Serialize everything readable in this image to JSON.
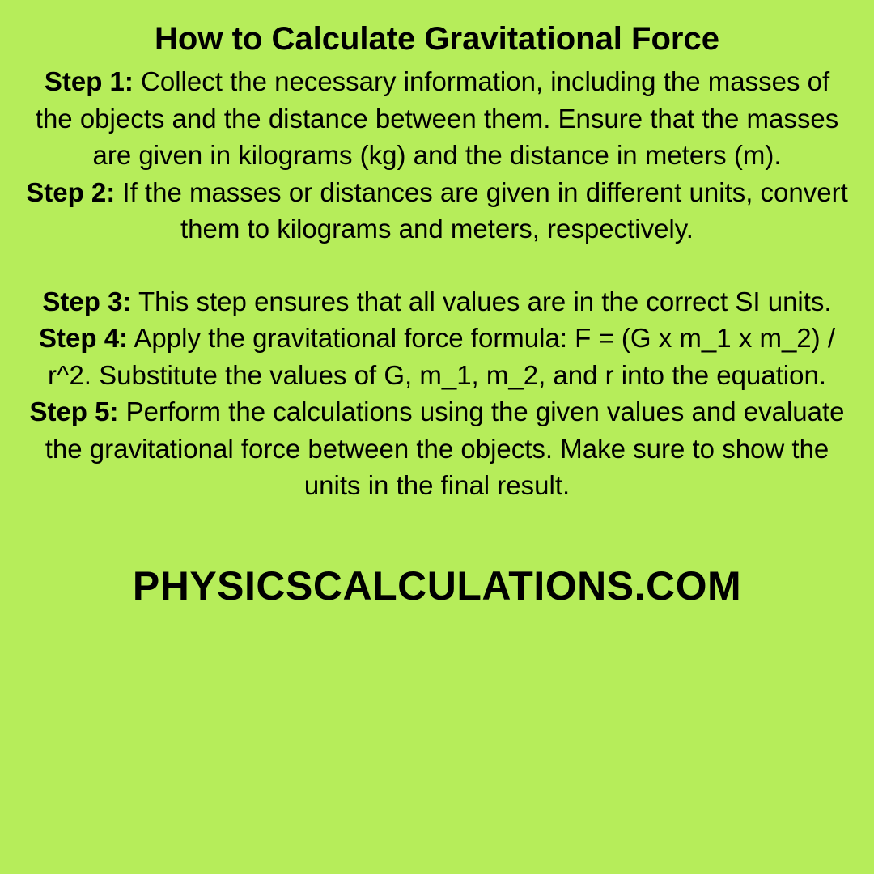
{
  "background_color": "#b6ed5a",
  "text_color": "#000000",
  "title": {
    "text": "How to Calculate Gravitational Force",
    "fontsize": 40,
    "fontweight": 700
  },
  "body_fontsize": 33,
  "steps": [
    {
      "label": "Step 1:",
      "text": " Collect the necessary information, including the masses of the objects and the distance between them. Ensure that the masses are given in kilograms (kg) and the distance in meters (m)."
    },
    {
      "label": "Step 2:",
      "text": " If the masses or distances are given in different units, convert them to kilograms and meters, respectively."
    },
    {
      "label": "Step 3:",
      "text": " This step ensures that all values are in the correct SI units."
    },
    {
      "label": "Step 4:",
      "text": " Apply the gravitational force formula: F = (G x m_1 x m_2) / r^2. Substitute the values of G, m_1, m_2, and r into the equation."
    },
    {
      "label": "Step 5:",
      "text": " Perform the calculations using the given values and evaluate the gravitational force between the objects. Make sure to show the units in the final result."
    }
  ],
  "blank_after_step_index": 1,
  "blank_line_height": 44,
  "footer": {
    "text": "PHYSICSCALCULATIONS.COM",
    "fontsize": 50,
    "fontweight": 800
  }
}
